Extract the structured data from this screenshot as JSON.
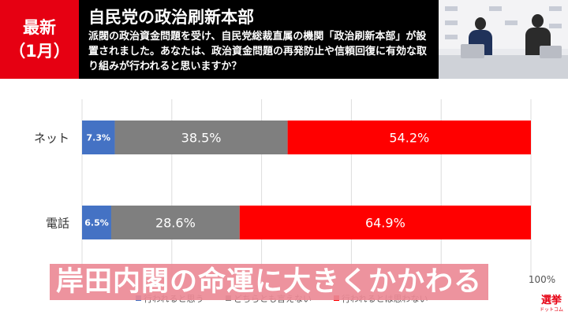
{
  "header": {
    "badge_line1": "最新",
    "badge_line2": "（1月）",
    "title": "自民党の政治刷新本部",
    "question": "派閥の政治資金問題を受け、自民党総裁直属の機関「政治刷新本部」が設置されました。あなたは、政治資金問題の再発防止や信頼回復に有効な取り組みが行われると思いますか？"
  },
  "caption": "岸田内閣の命運に大きくかかわる",
  "logo": {
    "big": "選挙",
    "small": "ドットコム"
  },
  "colors": {
    "yes": "#4472c4",
    "neutral": "#7f7f7f",
    "no": "#ff0000",
    "brand": "#e60012"
  },
  "chart_data": {
    "type": "bar",
    "orientation": "horizontal",
    "stacked": true,
    "categories": [
      "ネット",
      "電話"
    ],
    "series": [
      {
        "name": "行われると思う",
        "values": [
          7.3,
          6.5
        ]
      },
      {
        "name": "どちらとも言えない",
        "values": [
          38.5,
          28.6
        ]
      },
      {
        "name": "行われるとは思わない",
        "values": [
          54.2,
          64.9
        ]
      }
    ],
    "xlim": [
      0,
      100
    ],
    "grid": true,
    "legend": "bottom",
    "tick_label_visible": "100%"
  }
}
